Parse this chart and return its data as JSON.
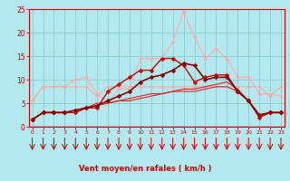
{
  "bg_color": "#b3e8ee",
  "grid_color": "#88cccc",
  "xlabel": "Vent moyen/en rafales ( km/h )",
  "xlabel_color": "#cc0000",
  "axis_color": "#cc0000",
  "tick_color": "#cc0000",
  "x": [
    0,
    1,
    2,
    3,
    4,
    5,
    6,
    7,
    8,
    9,
    10,
    11,
    12,
    13,
    14,
    15,
    16,
    17,
    18,
    19,
    20,
    21,
    22,
    23
  ],
  "lines": [
    {
      "y": [
        5.5,
        8.5,
        8.5,
        8.5,
        10.0,
        10.5,
        7.0,
        5.0,
        8.0,
        8.0,
        14.5,
        14.5,
        14.5,
        18.0,
        24.5,
        19.0,
        14.5,
        16.5,
        14.5,
        10.5,
        10.5,
        7.0,
        7.0,
        6.5
      ],
      "color": "#ffaaaa",
      "lw": 0.8,
      "marker": "D",
      "ms": 2.0,
      "zorder": 2,
      "ls": "-"
    },
    {
      "y": [
        5.5,
        8.5,
        8.5,
        8.5,
        8.5,
        8.5,
        6.5,
        8.5,
        8.5,
        8.5,
        8.5,
        8.5,
        8.5,
        8.5,
        8.5,
        8.5,
        8.5,
        8.5,
        8.5,
        8.5,
        8.5,
        8.5,
        6.5,
        8.5
      ],
      "color": "#ffaaaa",
      "lw": 0.8,
      "marker": "D",
      "ms": 2.0,
      "zorder": 3,
      "ls": "-"
    },
    {
      "y": [
        1.5,
        3.0,
        3.0,
        3.0,
        3.5,
        4.0,
        5.0,
        5.0,
        5.5,
        5.5,
        6.0,
        6.5,
        7.0,
        7.5,
        8.0,
        8.0,
        8.5,
        9.0,
        9.5,
        8.0,
        5.5,
        2.0,
        3.0,
        3.0
      ],
      "color": "#dd2222",
      "lw": 0.8,
      "marker": null,
      "ms": 0,
      "zorder": 4,
      "ls": "-"
    },
    {
      "y": [
        1.5,
        3.0,
        3.0,
        3.0,
        3.5,
        4.0,
        4.5,
        5.0,
        5.5,
        6.0,
        6.5,
        7.0,
        7.0,
        7.5,
        7.5,
        7.5,
        8.0,
        8.5,
        8.5,
        7.5,
        5.5,
        2.5,
        3.0,
        3.0
      ],
      "color": "#dd2222",
      "lw": 0.8,
      "marker": null,
      "ms": 0,
      "zorder": 4,
      "ls": "-"
    },
    {
      "y": [
        1.5,
        3.0,
        3.0,
        3.0,
        3.0,
        4.0,
        4.0,
        7.5,
        9.0,
        10.5,
        12.0,
        12.0,
        14.5,
        14.5,
        13.0,
        9.5,
        10.5,
        11.0,
        11.0,
        7.5,
        5.5,
        2.0,
        3.0,
        3.0
      ],
      "color": "#cc0000",
      "lw": 1.0,
      "marker": "D",
      "ms": 2.5,
      "zorder": 5,
      "ls": "-"
    },
    {
      "y": [
        1.5,
        3.0,
        3.0,
        3.0,
        3.5,
        4.0,
        4.5,
        5.5,
        6.5,
        7.5,
        9.5,
        10.5,
        11.0,
        12.0,
        13.5,
        13.0,
        10.0,
        10.5,
        10.5,
        7.5,
        5.5,
        2.5,
        3.0,
        3.0
      ],
      "color": "#880000",
      "lw": 1.2,
      "marker": "D",
      "ms": 2.5,
      "zorder": 6,
      "ls": "-"
    }
  ],
  "ylim": [
    0,
    25
  ],
  "xlim": [
    -0.3,
    23.3
  ],
  "yticks": [
    0,
    5,
    10,
    15,
    20,
    25
  ],
  "xticks": [
    0,
    1,
    2,
    3,
    4,
    5,
    6,
    7,
    8,
    9,
    10,
    11,
    12,
    13,
    14,
    15,
    16,
    17,
    18,
    19,
    20,
    21,
    22,
    23
  ],
  "hline_y": 0,
  "hline_color": "#cc0000"
}
